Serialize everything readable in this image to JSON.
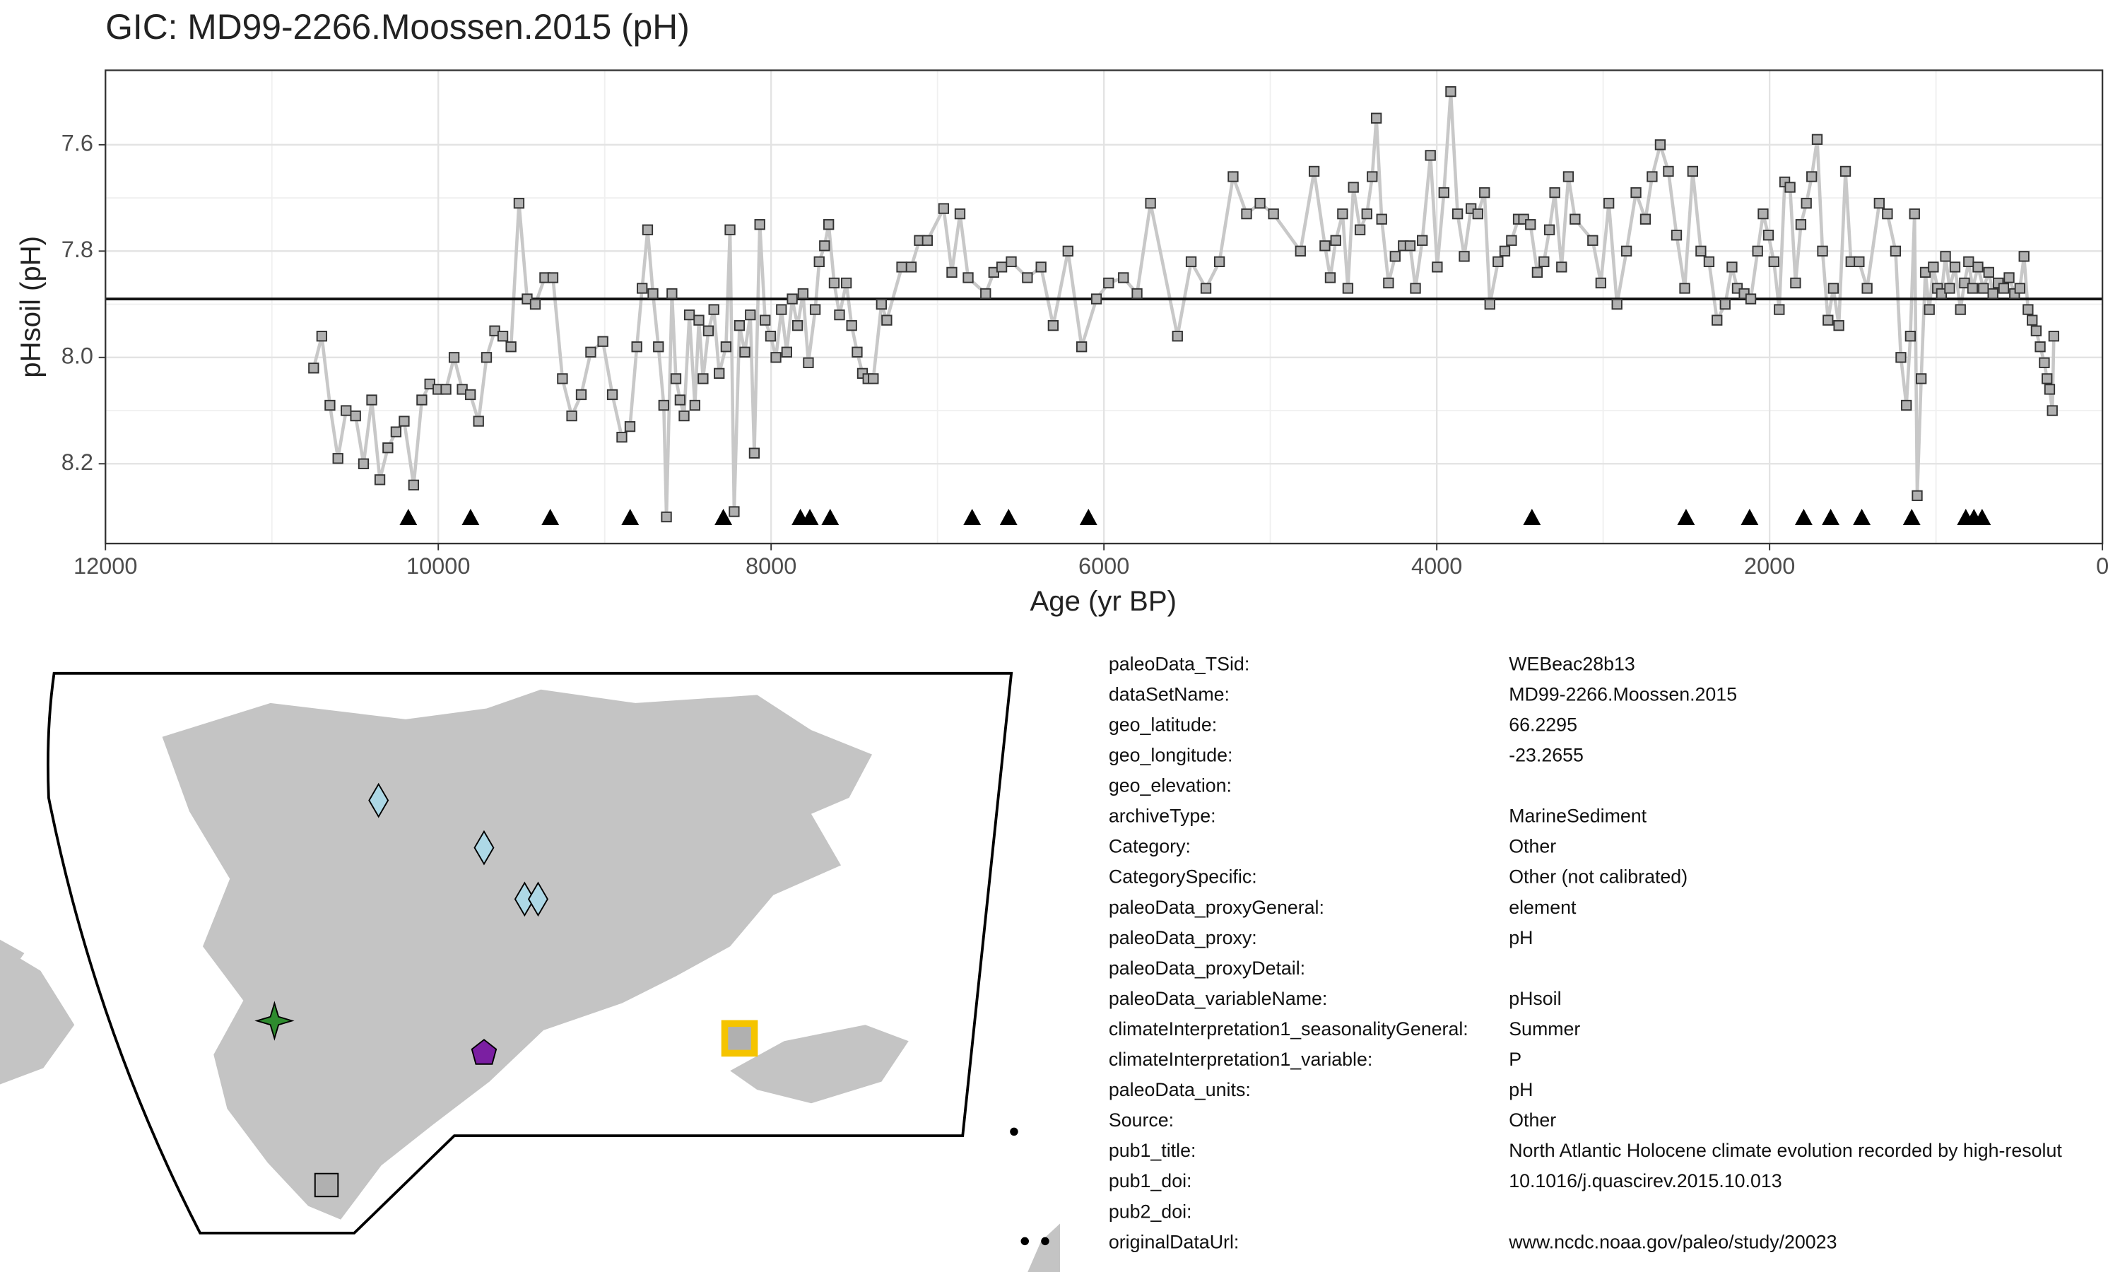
{
  "chart_data": {
    "type": "line",
    "title": "GIC: MD99-2266.Moossen.2015 (pH)",
    "xlabel": "Age (yr BP)",
    "ylabel": "pHsoil (pH)",
    "xlim": [
      12000,
      0
    ],
    "ylim": [
      8.35,
      7.46
    ],
    "xticks": [
      12000,
      10000,
      8000,
      6000,
      4000,
      2000,
      0
    ],
    "yticks": [
      7.6,
      7.8,
      {
        "value": 8.0,
        "label": "8.0"
      },
      8.2
    ],
    "grid": true,
    "hline": 7.89,
    "line_color": "#c8c8c8",
    "point_color": "#b0b0b0",
    "triangles_x": [
      10180,
      9806,
      9327,
      8847,
      8287,
      7824,
      7767,
      7645,
      6792,
      6573,
      6093,
      3428,
      2502,
      2120,
      1795,
      1633,
      1446,
      1146,
      821,
      772,
      723
    ],
    "triangles_y": 8.3,
    "x": [
      10749,
      10700,
      10651,
      10603,
      10554,
      10497,
      10449,
      10400,
      10351,
      10303,
      10254,
      10205,
      10148,
      10099,
      10051,
      10002,
      9954,
      9905,
      9856,
      9807,
      9758,
      9710,
      9661,
      9612,
      9563,
      9515,
      9466,
      9417,
      9360,
      9311,
      9254,
      9198,
      9141,
      9084,
      9011,
      8954,
      8897,
      8848,
      8807,
      8775,
      8742,
      8710,
      8677,
      8645,
      8629,
      8596,
      8572,
      8547,
      8523,
      8491,
      8458,
      8434,
      8409,
      8377,
      8344,
      8312,
      8271,
      8247,
      8222,
      8190,
      8158,
      8125,
      8101,
      8068,
      8036,
      8003,
      7971,
      7938,
      7906,
      7873,
      7841,
      7808,
      7776,
      7735,
      7711,
      7679,
      7654,
      7621,
      7589,
      7548,
      7516,
      7483,
      7451,
      7418,
      7386,
      7337,
      7305,
      7215,
      7158,
      7109,
      7061,
      6963,
      6914,
      6865,
      6816,
      6711,
      6662,
      6614,
      6557,
      6460,
      6378,
      6305,
      6216,
      6134,
      6045,
      5972,
      5883,
      5801,
      5720,
      5558,
      5476,
      5387,
      5306,
      5224,
      5143,
      5062,
      4981,
      4819,
      4737,
      4672,
      4640,
      4607,
      4566,
      4534,
      4501,
      4461,
      4420,
      4388,
      4363,
      4331,
      4290,
      4250,
      4201,
      4160,
      4128,
      4087,
      4038,
      3997,
      3957,
      3916,
      3875,
      3835,
      3794,
      3753,
      3713,
      3681,
      3632,
      3591,
      3551,
      3510,
      3478,
      3437,
      3396,
      3356,
      3323,
      3291,
      3250,
      3209,
      3169,
      3063,
      3014,
      2966,
      2917,
      2860,
      2803,
      2746,
      2706,
      2657,
      2608,
      2559,
      2510,
      2462,
      2413,
      2364,
      2316,
      2267,
      2226,
      2194,
      2153,
      2113,
      2072,
      2039,
      2007,
      1974,
      1942,
      1909,
      1877,
      1844,
      1812,
      1779,
      1747,
      1714,
      1682,
      1649,
      1617,
      1584,
      1544,
      1511,
      1462,
      1414,
      1341,
      1292,
      1243,
      1211,
      1178,
      1154,
      1129,
      1113,
      1089,
      1064,
      1040,
      1016,
      991,
      967,
      943,
      918,
      886,
      853,
      829,
      804,
      780,
      748,
      715,
      683,
      658,
      626,
      593,
      561,
      528,
      496,
      471,
      447,
      422,
      398,
      374,
      349,
      333,
      317,
      301,
      292
    ],
    "values": [
      8.02,
      7.96,
      8.09,
      8.19,
      8.1,
      8.11,
      8.2,
      8.08,
      8.23,
      8.17,
      8.14,
      8.12,
      8.24,
      8.08,
      8.05,
      8.06,
      8.06,
      8.0,
      8.06,
      8.07,
      8.12,
      8.0,
      7.95,
      7.96,
      7.98,
      7.71,
      7.89,
      7.9,
      7.85,
      7.85,
      8.04,
      8.11,
      8.07,
      7.99,
      7.97,
      8.07,
      8.15,
      8.13,
      7.98,
      7.87,
      7.76,
      7.88,
      7.98,
      8.09,
      8.3,
      7.88,
      8.04,
      8.08,
      8.11,
      7.92,
      8.09,
      7.93,
      8.04,
      7.95,
      7.91,
      8.03,
      7.98,
      7.76,
      8.29,
      7.94,
      7.99,
      7.92,
      8.18,
      7.75,
      7.93,
      7.96,
      8.0,
      7.91,
      7.99,
      7.89,
      7.94,
      7.88,
      8.01,
      7.91,
      7.82,
      7.79,
      7.75,
      7.86,
      7.92,
      7.86,
      7.94,
      7.99,
      8.03,
      8.04,
      8.04,
      7.9,
      7.93,
      7.83,
      7.83,
      7.78,
      7.78,
      7.72,
      7.84,
      7.73,
      7.85,
      7.88,
      7.84,
      7.83,
      7.82,
      7.85,
      7.83,
      7.94,
      7.8,
      7.98,
      7.89,
      7.86,
      7.85,
      7.88,
      7.71,
      7.96,
      7.82,
      7.87,
      7.82,
      7.66,
      7.73,
      7.71,
      7.73,
      7.8,
      7.65,
      7.79,
      7.85,
      7.78,
      7.73,
      7.87,
      7.68,
      7.76,
      7.73,
      7.66,
      7.55,
      7.74,
      7.86,
      7.81,
      7.79,
      7.79,
      7.87,
      7.78,
      7.62,
      7.83,
      7.69,
      7.5,
      7.73,
      7.81,
      7.72,
      7.73,
      7.69,
      7.9,
      7.82,
      7.8,
      7.78,
      7.74,
      7.74,
      7.75,
      7.84,
      7.82,
      7.76,
      7.69,
      7.83,
      7.66,
      7.74,
      7.78,
      7.86,
      7.71,
      7.9,
      7.8,
      7.69,
      7.74,
      7.66,
      7.6,
      7.65,
      7.77,
      7.87,
      7.65,
      7.8,
      7.82,
      7.93,
      7.9,
      7.83,
      7.87,
      7.88,
      7.89,
      7.8,
      7.73,
      7.77,
      7.82,
      7.91,
      7.67,
      7.68,
      7.86,
      7.75,
      7.71,
      7.66,
      7.59,
      7.8,
      7.93,
      7.87,
      7.94,
      7.65,
      7.82,
      7.82,
      7.87,
      7.71,
      7.73,
      7.8,
      8.0,
      8.09,
      7.96,
      7.73,
      8.26,
      8.04,
      7.84,
      7.91,
      7.83,
      7.87,
      7.88,
      7.81,
      7.87,
      7.83,
      7.91,
      7.86,
      7.82,
      7.87,
      7.83,
      7.87,
      7.84,
      7.88,
      7.86,
      7.87,
      7.85,
      7.88,
      7.87,
      7.81,
      7.91,
      7.93,
      7.95,
      7.98,
      8.01,
      8.04,
      8.06,
      8.1,
      7.96
    ]
  },
  "metadata": [
    {
      "key": "paleoData_TSid:",
      "value": "WEBeac28b13"
    },
    {
      "key": "dataSetName:",
      "value": "MD99-2266.Moossen.2015"
    },
    {
      "key": "geo_latitude:",
      "value": "66.2295"
    },
    {
      "key": "geo_longitude:",
      "value": "-23.2655"
    },
    {
      "key": "geo_elevation:"
    },
    {
      "key": "archiveType:",
      "value": "MarineSediment"
    },
    {
      "key": "Category:",
      "value": "Other"
    },
    {
      "key": "CategorySpecific:",
      "value": "Other (not calibrated)"
    },
    {
      "key": "paleoData_proxyGeneral:",
      "value": "element"
    },
    {
      "key": "paleoData_proxy:",
      "value": "pH"
    },
    {
      "key": "paleoData_proxyDetail:"
    },
    {
      "key": "paleoData_variableName:",
      "value": "pHsoil"
    },
    {
      "key": "climateInterpretation1_seasonalityGeneral:",
      "value": "Summer"
    },
    {
      "key": "climateInterpretation1_variable:",
      "value": "P"
    },
    {
      "key": "paleoData_units:",
      "value": "pH"
    },
    {
      "key": "Source:",
      "value": "Other"
    },
    {
      "key": "pub1_title:",
      "value": "North Atlantic Holocene climate evolution recorded by high-resolut"
    },
    {
      "key": "pub1_doi:",
      "value": "10.1016/j.quascirev.2015.10.013"
    },
    {
      "key": "pub2_doi:"
    },
    {
      "key": "originalDataUrl:",
      "value": "www.ncdc.noaa.gov/paleo/study/20023"
    }
  ]
}
